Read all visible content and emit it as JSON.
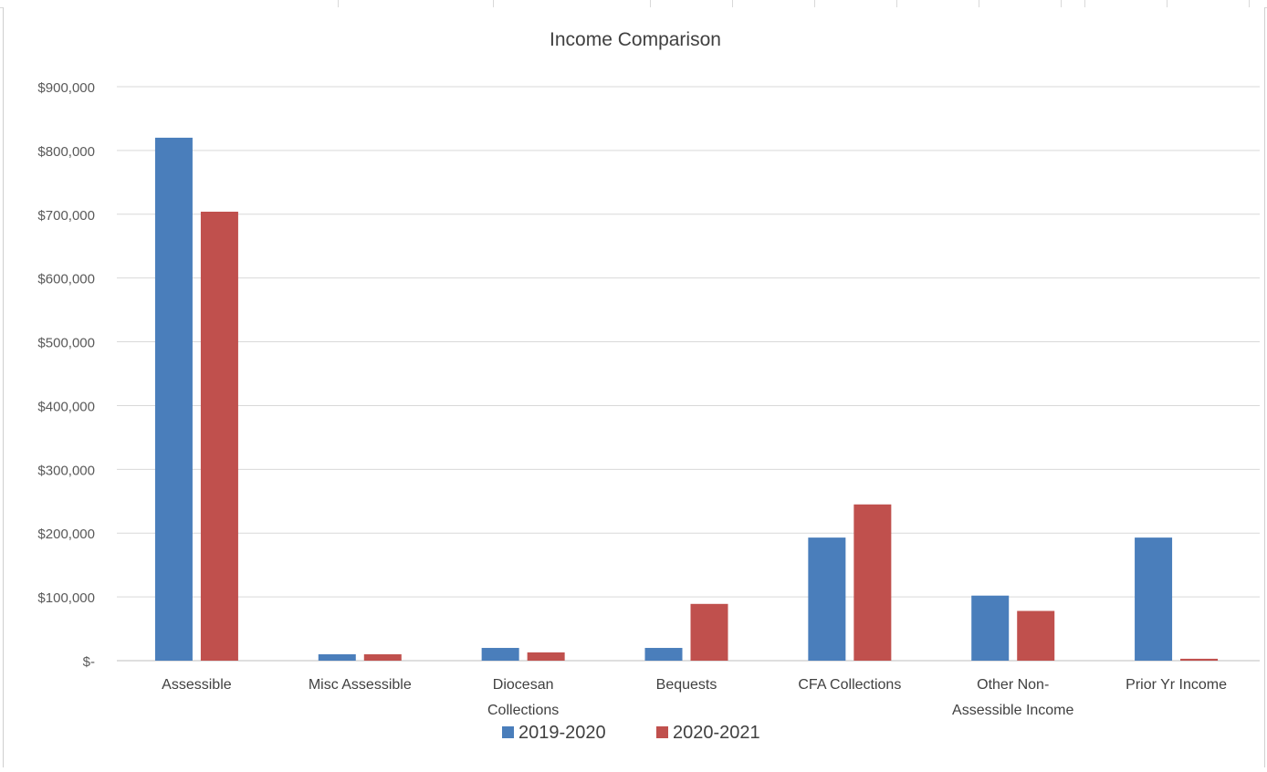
{
  "chart_data": {
    "type": "bar",
    "title": "Income Comparison",
    "categories": [
      [
        "Assessible"
      ],
      [
        "Misc Assessible"
      ],
      [
        "Diocesan",
        "Collections"
      ],
      [
        "Bequests"
      ],
      [
        "CFA Collections"
      ],
      [
        "Other Non-",
        "Assessible Income"
      ],
      [
        "Prior Yr Income"
      ]
    ],
    "series": [
      {
        "name": "2019-2020",
        "color": "#4a7ebb",
        "values": [
          820000,
          10000,
          20000,
          20000,
          193000,
          102000,
          193000
        ]
      },
      {
        "name": "2020-2021",
        "color": "#c0504d",
        "values": [
          704000,
          10000,
          13000,
          89000,
          245000,
          78000,
          3000
        ]
      }
    ],
    "ylim": [
      0,
      900000
    ],
    "yticks": [
      {
        "value": 0,
        "label": "$-"
      },
      {
        "value": 100000,
        "label": "$100,000"
      },
      {
        "value": 200000,
        "label": "$200,000"
      },
      {
        "value": 300000,
        "label": "$300,000"
      },
      {
        "value": 400000,
        "label": "$400,000"
      },
      {
        "value": 500000,
        "label": "$500,000"
      },
      {
        "value": 600000,
        "label": "$600,000"
      },
      {
        "value": 700000,
        "label": "$700,000"
      },
      {
        "value": 800000,
        "label": "$800,000"
      },
      {
        "value": 900000,
        "label": "$900,000"
      }
    ],
    "grid": true,
    "legend_position": "bottom"
  }
}
